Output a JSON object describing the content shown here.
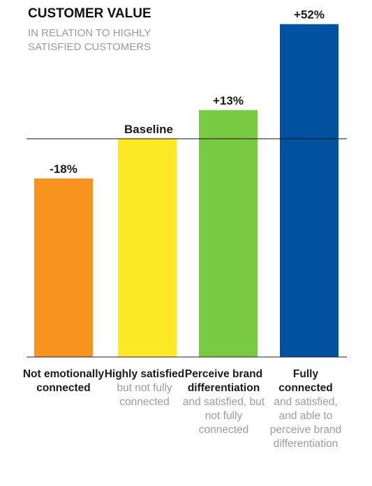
{
  "header": {
    "title": "CUSTOMER VALUE",
    "subtitle": "IN RELATION TO HIGHLY SATISFIED CUSTOMERS"
  },
  "baseline_label": "Baseline",
  "chart_data": {
    "type": "bar",
    "title": "CUSTOMER VALUE",
    "subtitle": "IN RELATION TO HIGHLY SATISFIED CUSTOMERS",
    "categories": [
      "Not emotionally connected",
      "Highly satisfied but not fully connected",
      "Perceive brand differentiation and satisfied, but not fully connected",
      "Fully connected and satisfied, and able to perceive brand differentiation"
    ],
    "values": [
      -18,
      0,
      13,
      52
    ],
    "value_labels": [
      "-18%",
      "",
      "+13%",
      "+52%"
    ],
    "colors": [
      "#F7941D",
      "#FBE925",
      "#7AC943",
      "#0052A0"
    ],
    "baseline": 0,
    "ylim": [
      -100,
      60
    ],
    "grid": false,
    "legend": "none"
  },
  "category_labels": [
    {
      "head": "Not emotionally connected",
      "sub": ""
    },
    {
      "head": "Highly satisfied",
      "sub": "but not fully connected"
    },
    {
      "head": "Perceive brand differentiation",
      "sub": "and satisfied, but not fully connected"
    },
    {
      "head": "Fully connected",
      "sub": "and satisfied, and able to perceive brand differentiation"
    }
  ]
}
